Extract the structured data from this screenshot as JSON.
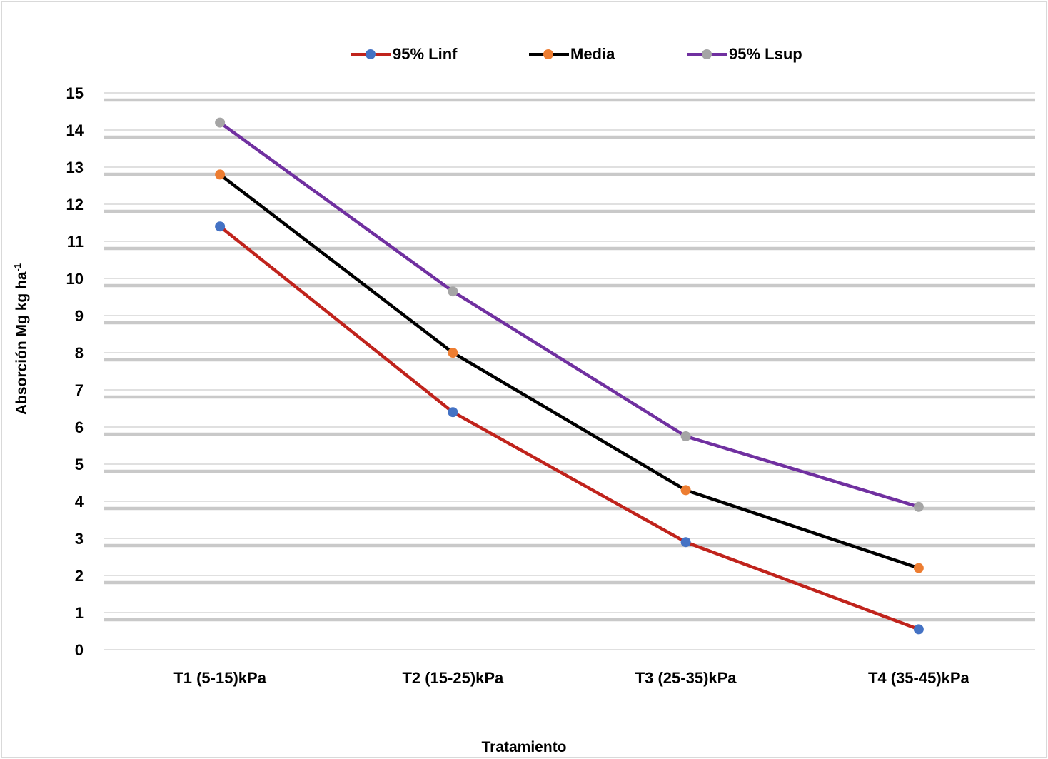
{
  "colors": {
    "background": "#ffffff",
    "gridline": "#c9c9c9",
    "series_95_linf": "#c0231c",
    "series_media": "#000000",
    "series_95_lsup": "#7030a0",
    "marker_95_linf": "#4472c4",
    "marker_media": "#ed7d31",
    "marker_95_lsup": "#a5a5a5"
  },
  "chart_data": {
    "type": "line",
    "title": "",
    "xlabel": "Tratamiento",
    "ylabel": "Absorción Mg kg ha",
    "ylabel_superscript": "-1",
    "categories": [
      "T1 (5-15)kPa",
      "T2 (15-25)kPa",
      "T3 (25-35)kPa",
      "T4 (35-45)kPa"
    ],
    "ylim": [
      0,
      15
    ],
    "yticks": [
      "0",
      "1",
      "2",
      "3",
      "4",
      "5",
      "6",
      "7",
      "8",
      "9",
      "10",
      "11",
      "12",
      "13",
      "14",
      "15"
    ],
    "grid": true,
    "legend_position": "top",
    "series": [
      {
        "name": "95% Linf",
        "values": [
          11.4,
          6.4,
          2.9,
          0.55
        ]
      },
      {
        "name": "Media",
        "values": [
          12.8,
          8.0,
          4.3,
          2.2
        ]
      },
      {
        "name": "95% Lsup",
        "values": [
          14.2,
          9.65,
          5.75,
          3.85
        ]
      }
    ]
  }
}
